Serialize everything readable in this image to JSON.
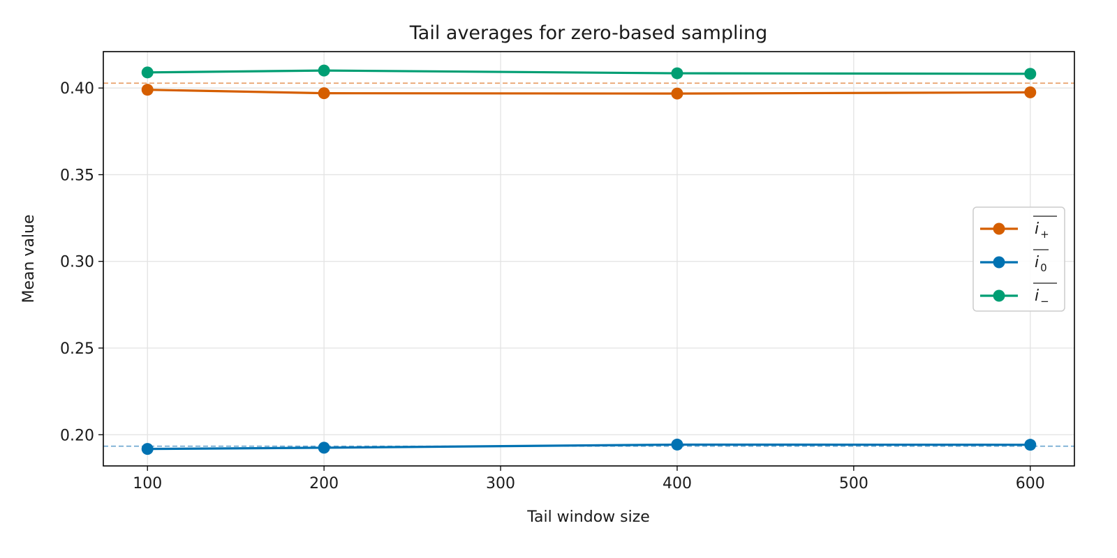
{
  "chart_data": {
    "type": "line",
    "title": "Tail averages for zero-based sampling",
    "xlabel": "Tail window size",
    "ylabel": "Mean value",
    "x": [
      100,
      200,
      400,
      600
    ],
    "xlim": [
      75,
      625
    ],
    "ylim": [
      0.182,
      0.421
    ],
    "xticks": [
      100,
      200,
      300,
      400,
      500,
      600
    ],
    "xtick_labels": [
      "100",
      "200",
      "300",
      "400",
      "500",
      "600"
    ],
    "yticks": [
      0.2,
      0.25,
      0.3,
      0.35,
      0.4
    ],
    "ytick_labels": [
      "0.20",
      "0.25",
      "0.30",
      "0.35",
      "0.40"
    ],
    "grid": true,
    "legend_position": "center-right",
    "series": [
      {
        "name": "i+",
        "label_base": "i",
        "label_sub": "+",
        "color": "#d55e00",
        "values": [
          0.399,
          0.397,
          0.3968,
          0.3975
        ]
      },
      {
        "name": "i0",
        "label_base": "i",
        "label_sub": "0",
        "color": "#0072b2",
        "values": [
          0.1918,
          0.1925,
          0.1943,
          0.1942
        ]
      },
      {
        "name": "i-",
        "label_base": "i",
        "label_sub": "−",
        "color": "#009e73",
        "values": [
          0.409,
          0.4101,
          0.4085,
          0.4082
        ]
      }
    ],
    "reference_lines": [
      {
        "name": "reference-line-plus",
        "value": 0.4028,
        "color": "#e8a06a"
      },
      {
        "name": "reference-line-zero",
        "value": 0.1934,
        "color": "#6aa5cf"
      }
    ]
  }
}
